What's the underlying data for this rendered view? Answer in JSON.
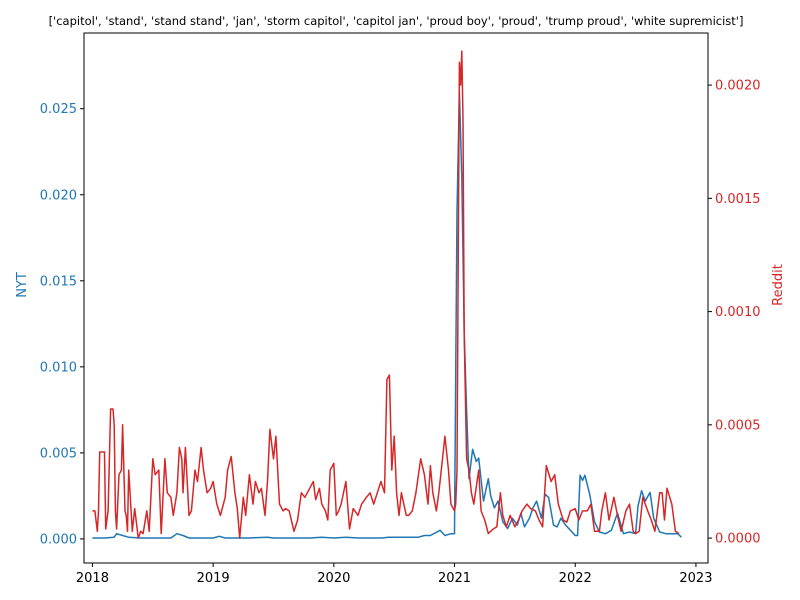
{
  "chart_data": {
    "type": "line",
    "title": "['capitol', 'stand', 'stand stand', 'jan', 'storm capitol', 'capitol jan', 'proud boy', 'proud', 'trump proud', 'white supremicist']",
    "xlabel": "",
    "x_ticks": [
      "2018",
      "2019",
      "2020",
      "2021",
      "2022",
      "2023"
    ],
    "xlim": [
      2017.93,
      2023.1
    ],
    "left_axis": {
      "label": "NYT",
      "color": "#1f77b4",
      "ylim": [
        -0.0014,
        0.0294
      ],
      "ticks": [
        0.0,
        0.005,
        0.01,
        0.015,
        0.02,
        0.025
      ],
      "tick_labels": [
        "0.000",
        "0.005",
        "0.010",
        "0.015",
        "0.020",
        "0.025"
      ]
    },
    "right_axis": {
      "label": "Reddit",
      "color": "#d62728",
      "ylim": [
        -0.00011,
        0.00223
      ],
      "ticks": [
        0.0,
        0.0005,
        0.001,
        0.0015,
        0.002
      ],
      "tick_labels": [
        "0.0000",
        "0.0005",
        "0.0010",
        "0.0015",
        "0.0020"
      ]
    },
    "grid": false,
    "legend": "none",
    "series": [
      {
        "name": "NYT",
        "axis": "left",
        "color": "#1f77b4",
        "x": [
          2018.0,
          2018.1,
          2018.18,
          2018.2,
          2018.25,
          2018.3,
          2018.4,
          2018.5,
          2018.65,
          2018.7,
          2018.75,
          2018.8,
          2018.9,
          2019.0,
          2019.05,
          2019.1,
          2019.2,
          2019.3,
          2019.45,
          2019.5,
          2019.6,
          2019.7,
          2019.8,
          2019.9,
          2020.0,
          2020.1,
          2020.2,
          2020.3,
          2020.4,
          2020.45,
          2020.5,
          2020.6,
          2020.7,
          2020.75,
          2020.8,
          2020.88,
          2020.92,
          2020.97,
          2021.0,
          2021.01,
          2021.02,
          2021.04,
          2021.06,
          2021.08,
          2021.1,
          2021.12,
          2021.15,
          2021.18,
          2021.2,
          2021.24,
          2021.28,
          2021.3,
          2021.33,
          2021.36,
          2021.4,
          2021.44,
          2021.48,
          2021.52,
          2021.55,
          2021.58,
          2021.62,
          2021.65,
          2021.68,
          2021.72,
          2021.75,
          2021.78,
          2021.82,
          2021.85,
          2021.88,
          2021.92,
          2021.96,
          2022.0,
          2022.02,
          2022.04,
          2022.06,
          2022.08,
          2022.12,
          2022.16,
          2022.2,
          2022.25,
          2022.3,
          2022.35,
          2022.4,
          2022.45,
          2022.5,
          2022.52,
          2022.55,
          2022.58,
          2022.62,
          2022.65,
          2022.7,
          2022.75,
          2022.8,
          2022.85,
          2022.88
        ],
        "y": [
          5e-05,
          5e-05,
          0.0001,
          0.0003,
          0.0002,
          0.0001,
          5e-05,
          5e-05,
          5e-05,
          0.0003,
          0.0002,
          5e-05,
          5e-05,
          5e-05,
          0.00015,
          5e-05,
          5e-05,
          5e-05,
          0.0001,
          5e-05,
          5e-05,
          5e-05,
          5e-05,
          0.0001,
          5e-05,
          0.0001,
          5e-05,
          5e-05,
          5e-05,
          0.0001,
          0.0001,
          0.0001,
          0.0001,
          0.0002,
          0.0002,
          0.0005,
          0.0002,
          0.0003,
          0.0003,
          0.0095,
          0.019,
          0.026,
          0.021,
          0.012,
          0.0075,
          0.0035,
          0.0052,
          0.0045,
          0.0047,
          0.0022,
          0.0035,
          0.0025,
          0.0018,
          0.0022,
          0.001,
          0.0006,
          0.0012,
          0.0008,
          0.0015,
          0.0007,
          0.0012,
          0.0018,
          0.0022,
          0.0012,
          0.0026,
          0.0024,
          0.0008,
          0.0007,
          0.0012,
          0.0008,
          0.0005,
          0.0002,
          0.0002,
          0.0037,
          0.0034,
          0.0037,
          0.0026,
          0.001,
          0.0004,
          0.0003,
          0.0005,
          0.0015,
          0.0003,
          0.0004,
          0.0003,
          0.0019,
          0.0028,
          0.0022,
          0.0027,
          0.0012,
          0.0004,
          0.0003,
          0.0003,
          0.0003,
          0.0001
        ]
      },
      {
        "name": "Reddit",
        "axis": "right",
        "color": "#d62728",
        "x": [
          2018.0,
          2018.02,
          2018.04,
          2018.05,
          2018.06,
          2018.07,
          2018.1,
          2018.11,
          2018.13,
          2018.15,
          2018.17,
          2018.18,
          2018.19,
          2018.2,
          2018.22,
          2018.24,
          2018.25,
          2018.27,
          2018.28,
          2018.29,
          2018.3,
          2018.33,
          2018.35,
          2018.38,
          2018.4,
          2018.42,
          2018.45,
          2018.47,
          2018.5,
          2018.52,
          2018.55,
          2018.57,
          2018.6,
          2018.62,
          2018.65,
          2018.67,
          2018.7,
          2018.72,
          2018.74,
          2018.75,
          2018.77,
          2018.8,
          2018.82,
          2018.85,
          2018.87,
          2018.9,
          2018.92,
          2018.95,
          2018.98,
          2019.0,
          2019.03,
          2019.06,
          2019.1,
          2019.12,
          2019.15,
          2019.18,
          2019.2,
          2019.22,
          2019.25,
          2019.27,
          2019.3,
          2019.33,
          2019.35,
          2019.38,
          2019.4,
          2019.43,
          2019.45,
          2019.47,
          2019.5,
          2019.52,
          2019.55,
          2019.58,
          2019.6,
          2019.63,
          2019.67,
          2019.7,
          2019.73,
          2019.76,
          2019.8,
          2019.83,
          2019.85,
          2019.88,
          2019.9,
          2019.93,
          2019.95,
          2019.97,
          2020.0,
          2020.02,
          2020.04,
          2020.06,
          2020.08,
          2020.1,
          2020.13,
          2020.16,
          2020.2,
          2020.23,
          2020.27,
          2020.3,
          2020.33,
          2020.36,
          2020.39,
          2020.42,
          2020.44,
          2020.46,
          2020.48,
          2020.5,
          2020.52,
          2020.54,
          2020.56,
          2020.58,
          2020.6,
          2020.62,
          2020.65,
          2020.68,
          2020.72,
          2020.75,
          2020.78,
          2020.8,
          2020.82,
          2020.85,
          2020.87,
          2020.9,
          2020.92,
          2020.95,
          2020.97,
          2021.0,
          2021.01,
          2021.02,
          2021.03,
          2021.04,
          2021.05,
          2021.06,
          2021.07,
          2021.08,
          2021.1,
          2021.12,
          2021.14,
          2021.16,
          2021.2,
          2021.22,
          2021.25,
          2021.28,
          2021.32,
          2021.35,
          2021.38,
          2021.4,
          2021.43,
          2021.46,
          2021.5,
          2021.53,
          2021.56,
          2021.6,
          2021.63,
          2021.67,
          2021.7,
          2021.73,
          2021.76,
          2021.8,
          2021.83,
          2021.86,
          2021.9,
          2021.93,
          2021.96,
          2022.0,
          2022.03,
          2022.06,
          2022.1,
          2022.13,
          2022.16,
          2022.2,
          2022.22,
          2022.25,
          2022.28,
          2022.32,
          2022.35,
          2022.38,
          2022.42,
          2022.45,
          2022.48,
          2022.5,
          2022.53,
          2022.56,
          2022.6,
          2022.63,
          2022.66,
          2022.7,
          2022.72,
          2022.74,
          2022.76,
          2022.8,
          2022.83,
          2022.86
        ],
        "y": [
          0.00012,
          0.00012,
          3e-05,
          0.00012,
          0.00038,
          0.00038,
          0.00038,
          4e-05,
          0.00012,
          0.00057,
          0.00057,
          0.0005,
          0.00012,
          4e-05,
          0.00028,
          0.0003,
          0.0005,
          0.00012,
          0.0001,
          3e-05,
          0.0003,
          3e-05,
          0.00013,
          0.0,
          3e-05,
          2e-05,
          0.00012,
          3e-05,
          0.00035,
          0.00028,
          0.0003,
          2e-05,
          0.00035,
          0.0002,
          0.00018,
          0.0001,
          0.0002,
          0.0004,
          0.00035,
          0.0002,
          0.0004,
          0.0001,
          0.00012,
          0.0003,
          0.00025,
          0.0004,
          0.0003,
          0.0002,
          0.00022,
          0.00025,
          0.00015,
          0.0001,
          0.00018,
          0.0003,
          0.00036,
          0.0002,
          0.00013,
          0.0,
          0.00018,
          0.0001,
          0.00028,
          0.00015,
          0.00025,
          0.0002,
          0.00022,
          0.0001,
          0.00025,
          0.00048,
          0.00035,
          0.00045,
          0.00015,
          0.00012,
          0.00013,
          0.00012,
          3e-05,
          8e-05,
          0.0002,
          0.00018,
          0.00022,
          0.00025,
          0.00017,
          0.00022,
          0.00015,
          0.00012,
          8e-05,
          0.0003,
          0.00033,
          0.0001,
          0.00012,
          0.00015,
          0.0002,
          0.00025,
          4e-05,
          0.00013,
          0.0001,
          0.00015,
          0.00018,
          0.0002,
          0.00015,
          0.0002,
          0.00025,
          0.0002,
          0.0007,
          0.00072,
          0.0003,
          0.00045,
          0.0002,
          0.0001,
          0.0002,
          0.00015,
          0.0001,
          0.0001,
          0.00012,
          0.0002,
          0.00035,
          0.00028,
          0.00015,
          0.00032,
          0.0002,
          0.00012,
          0.0002,
          0.00035,
          0.00045,
          0.0003,
          0.00015,
          0.00012,
          0.00015,
          0.0003,
          0.0012,
          0.0021,
          0.002,
          0.00215,
          0.00185,
          0.0009,
          0.00035,
          0.0003,
          0.0002,
          0.00015,
          0.0003,
          0.00012,
          8e-05,
          2e-05,
          4e-05,
          5e-05,
          0.0002,
          0.0001,
          5e-05,
          0.0001,
          5e-05,
          8e-05,
          0.00012,
          0.00015,
          0.00013,
          0.00012,
          8e-05,
          5e-05,
          0.00032,
          0.00025,
          0.00028,
          0.00015,
          8e-05,
          7e-05,
          0.00012,
          0.00013,
          8e-05,
          0.00012,
          0.00012,
          0.00015,
          3e-05,
          3e-05,
          0.00012,
          0.0002,
          8e-05,
          0.00018,
          0.0001,
          3e-05,
          0.00012,
          0.00015,
          3e-05,
          2e-05,
          3e-05,
          0.00018,
          0.00012,
          8e-05,
          3e-05,
          0.0002,
          0.0002,
          8e-05,
          0.00022,
          0.00015,
          3e-05,
          2e-05
        ]
      }
    ]
  }
}
